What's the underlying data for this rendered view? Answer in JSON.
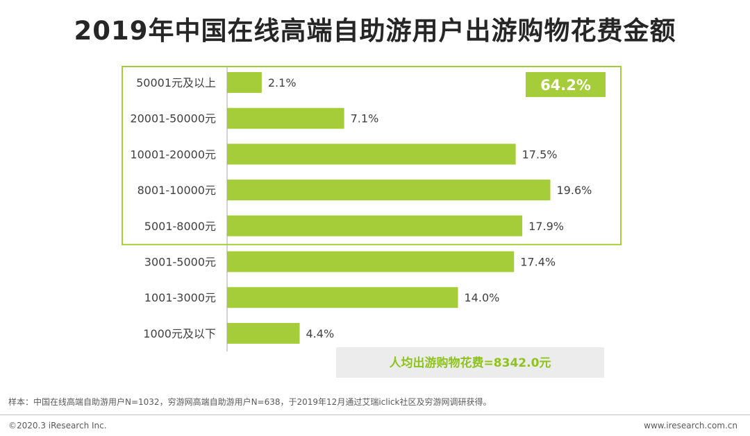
{
  "title": "2019年中国在线高端自助游用户出游购物花费金额",
  "chart_data": {
    "type": "bar",
    "orientation": "horizontal",
    "categories": [
      "50001元及以上",
      "20001-50000元",
      "10001-20000元",
      "8001-10000元",
      "5001-8000元",
      "3001-5000元",
      "1001-3000元",
      "1000元及以下"
    ],
    "values": [
      2.1,
      7.1,
      17.5,
      19.6,
      17.9,
      17.4,
      14.0,
      4.4
    ],
    "value_labels": [
      "2.1%",
      "7.1%",
      "17.5%",
      "19.6%",
      "17.9%",
      "17.4%",
      "14.0%",
      "4.4%"
    ],
    "xlim": [
      0,
      20
    ],
    "grid": false,
    "highlight": {
      "categories": [
        "50001元及以上",
        "20001-50000元",
        "10001-20000元",
        "8001-10000元",
        "5001-8000元"
      ],
      "label": "64.2%"
    },
    "annotation": "人均出游购物花费=8342.0元"
  },
  "colors": {
    "bar": "#a5cd39",
    "highlight_border": "#a5cd39",
    "annotation_bg": "#ececec",
    "annotation_text": "#8ec21e"
  },
  "footer": {
    "sample": "样本：中国在线高端自助游用户N=1032，穷游网高端自助游用户N=638，于2019年12月通过艾瑞iclick社区及穷游网调研获得。",
    "copyright": "©2020.3 iResearch Inc.",
    "website": "www.iresearch.com.cn"
  }
}
